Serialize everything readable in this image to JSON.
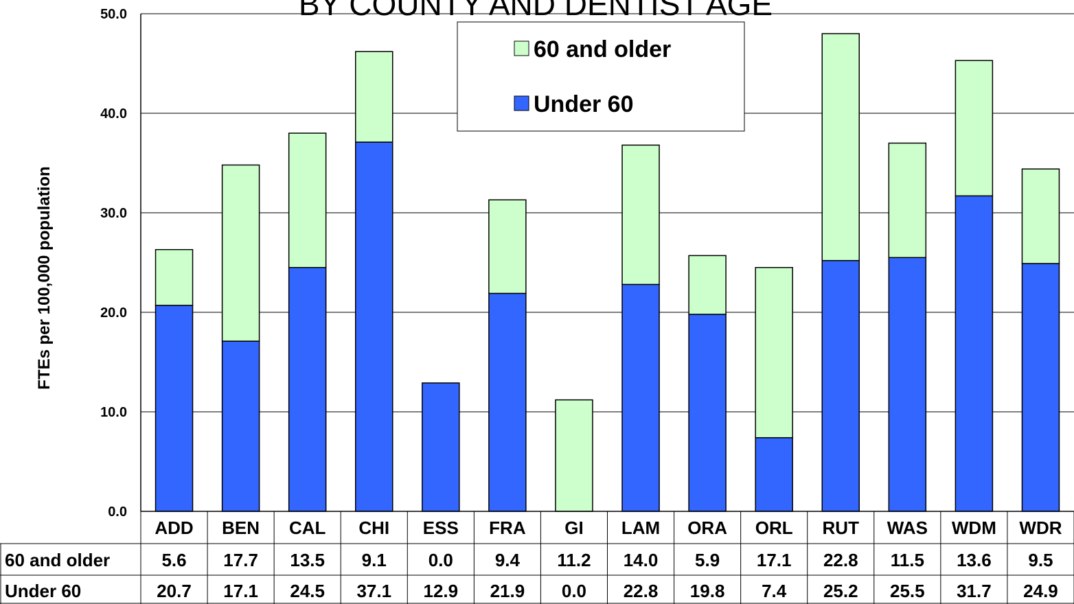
{
  "chart_data": {
    "type": "bar",
    "stacked": true,
    "title": "BY COUNTY AND DENTIST AGE",
    "ylabel": "FTEs per 100,000 population",
    "ylim": [
      0,
      50
    ],
    "yticks": [
      "0.0",
      "10.0",
      "20.0",
      "30.0",
      "40.0",
      "50.0"
    ],
    "grid": true,
    "legend_position": "top-center",
    "categories": [
      "ADD",
      "BEN",
      "CAL",
      "CHI",
      "ESS",
      "FRA",
      "GI",
      "LAM",
      "ORA",
      "ORL",
      "RUT",
      "WAS",
      "WDM",
      "WDR"
    ],
    "series": [
      {
        "name": "Under 60",
        "color": "#3366ff",
        "values": [
          20.7,
          17.1,
          24.5,
          37.1,
          12.9,
          21.9,
          0.0,
          22.8,
          19.8,
          7.4,
          25.2,
          25.5,
          31.7,
          24.9
        ],
        "labels": [
          "20.7",
          "17.1",
          "24.5",
          "37.1",
          "12.9",
          "21.9",
          "0.0",
          "22.8",
          "19.8",
          "7.4",
          "25.2",
          "25.5",
          "31.7",
          "24.9"
        ]
      },
      {
        "name": "60 and older",
        "color": "#ccffcc",
        "values": [
          5.6,
          17.7,
          13.5,
          9.1,
          0.0,
          9.4,
          11.2,
          14.0,
          5.9,
          17.1,
          22.8,
          11.5,
          13.6,
          9.5
        ],
        "labels": [
          "5.6",
          "17.7",
          "13.5",
          "9.1",
          "0.0",
          "9.4",
          "11.2",
          "14.0",
          "5.9",
          "17.1",
          "22.8",
          "11.5",
          "13.6",
          "9.5"
        ]
      }
    ],
    "data_table_rows": [
      "60 and older",
      "Under 60"
    ]
  }
}
